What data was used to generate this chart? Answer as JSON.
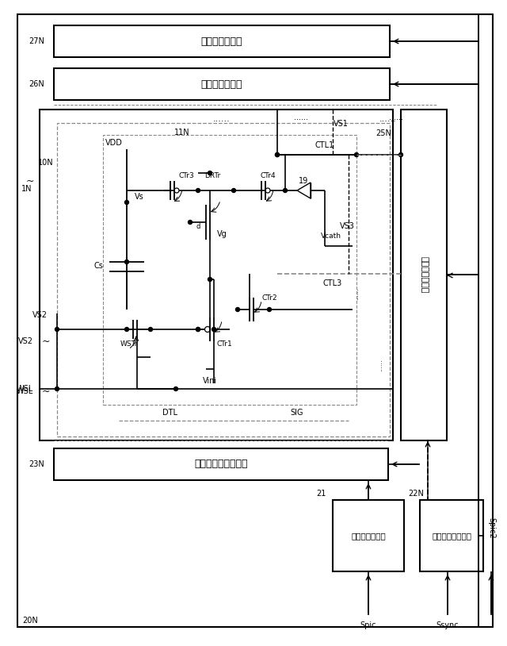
{
  "bg_color": "#ffffff",
  "fig_width": 6.4,
  "fig_height": 8.14,
  "dpi": 100,
  "scan27": "走査線駆動回路",
  "scan26": "走査線駆動回路",
  "scan23": "走査線駆動回路及量",
  "data_drv": "データ線駆動部",
  "img_proc": "画像信号処理部",
  "timing_gen": "タイミング生成部"
}
